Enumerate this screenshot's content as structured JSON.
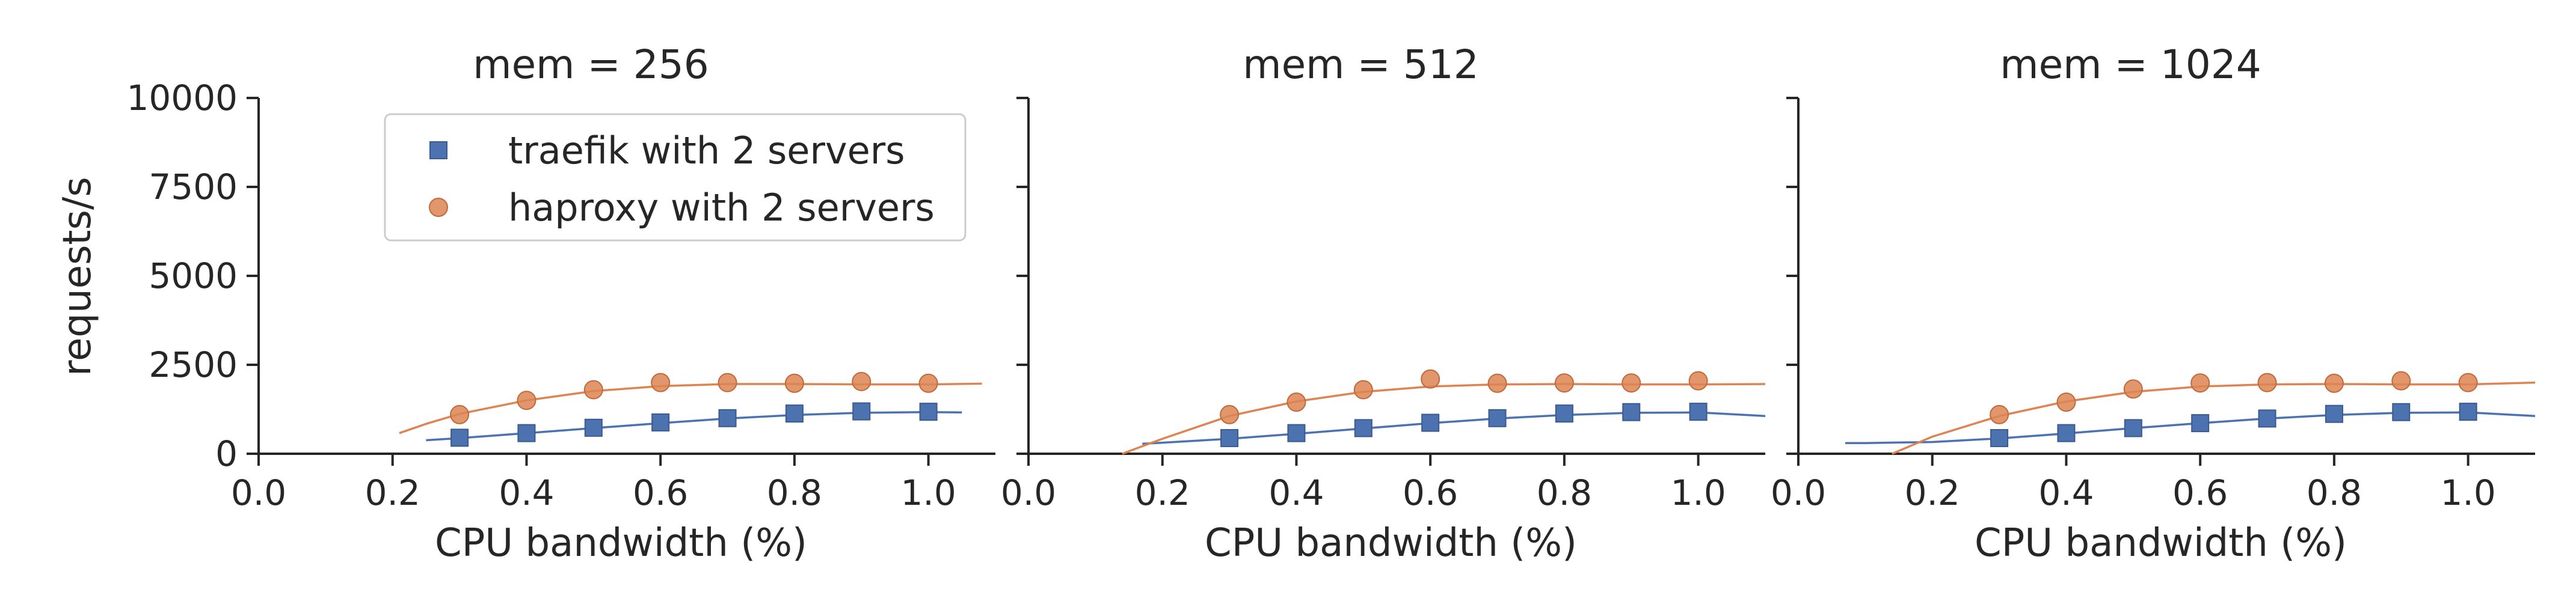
{
  "chart_data": {
    "type": "scatter",
    "ylabel": "requests/s",
    "ylim": [
      0,
      10000
    ],
    "yticks": [
      0,
      2500,
      5000,
      7500,
      10000
    ],
    "xlim": [
      0.0,
      1.1
    ],
    "xticks": [
      0.0,
      0.2,
      0.4,
      0.6,
      0.8,
      1.0
    ],
    "grid": false,
    "legend_position": "top-center (first panel)",
    "legend": [
      {
        "name": "traefik with 2 servers",
        "marker": "square",
        "color": "#4c72b0"
      },
      {
        "name": "haproxy with 2 servers",
        "marker": "circle",
        "color": "#dd8452"
      }
    ],
    "panels": [
      {
        "title": "mem = 256",
        "xlabel": "CPU bandwidth (%)",
        "x": [
          0.3,
          0.4,
          0.5,
          0.6,
          0.7,
          0.8,
          0.9,
          1.0
        ],
        "series": [
          {
            "name": "traefik with 2 servers",
            "values": [
              450,
              580,
              730,
              880,
              1000,
              1130,
              1190,
              1180
            ],
            "fit_range": [
              0.25,
              1.05
            ],
            "fit": [
              [
                0.25,
                380
              ],
              [
                0.3,
                440
              ],
              [
                0.4,
                580
              ],
              [
                0.5,
                720
              ],
              [
                0.6,
                860
              ],
              [
                0.7,
                990
              ],
              [
                0.8,
                1090
              ],
              [
                0.9,
                1150
              ],
              [
                1.0,
                1170
              ],
              [
                1.05,
                1160
              ]
            ]
          },
          {
            "name": "haproxy with 2 servers",
            "values": [
              1100,
              1500,
              1800,
              2000,
              2000,
              1980,
              2030,
              1980
            ],
            "fit_range": [
              0.21,
              1.08
            ],
            "fit": [
              [
                0.21,
                580
              ],
              [
                0.25,
                840
              ],
              [
                0.3,
                1120
              ],
              [
                0.4,
                1500
              ],
              [
                0.5,
                1760
              ],
              [
                0.6,
                1900
              ],
              [
                0.7,
                1960
              ],
              [
                0.8,
                1960
              ],
              [
                0.9,
                1950
              ],
              [
                1.0,
                1950
              ],
              [
                1.08,
                1970
              ]
            ]
          }
        ]
      },
      {
        "title": "mem = 512",
        "xlabel": "CPU bandwidth (%)",
        "x": [
          0.3,
          0.4,
          0.5,
          0.6,
          0.7,
          0.8,
          0.9,
          1.0
        ],
        "series": [
          {
            "name": "traefik with 2 servers",
            "values": [
              440,
              580,
              720,
              870,
              1000,
              1130,
              1170,
              1180
            ],
            "fit_range": [
              0.17,
              1.1
            ],
            "fit": [
              [
                0.17,
                280
              ],
              [
                0.2,
                310
              ],
              [
                0.3,
                420
              ],
              [
                0.4,
                560
              ],
              [
                0.5,
                710
              ],
              [
                0.6,
                860
              ],
              [
                0.7,
                990
              ],
              [
                0.8,
                1090
              ],
              [
                0.9,
                1150
              ],
              [
                1.0,
                1160
              ],
              [
                1.1,
                1060
              ]
            ]
          },
          {
            "name": "haproxy with 2 servers",
            "values": [
              1100,
              1450,
              1800,
              2100,
              1980,
              1990,
              1990,
              2050
            ],
            "fit_range": [
              0.14,
              1.1
            ],
            "fit": [
              [
                0.14,
                0
              ],
              [
                0.2,
                420
              ],
              [
                0.3,
                1060
              ],
              [
                0.4,
                1470
              ],
              [
                0.5,
                1740
              ],
              [
                0.6,
                1890
              ],
              [
                0.7,
                1950
              ],
              [
                0.8,
                1960
              ],
              [
                0.9,
                1950
              ],
              [
                1.0,
                1950
              ],
              [
                1.1,
                1960
              ]
            ]
          }
        ]
      },
      {
        "title": "mem = 1024",
        "xlabel": "CPU bandwidth (%)",
        "x": [
          0.3,
          0.4,
          0.5,
          0.6,
          0.7,
          0.8,
          0.9,
          1.0
        ],
        "series": [
          {
            "name": "traefik with 2 servers",
            "values": [
              440,
              580,
              720,
              860,
              990,
              1120,
              1170,
              1180
            ],
            "fit_range": [
              0.07,
              1.1
            ],
            "fit": [
              [
                0.07,
                300
              ],
              [
                0.1,
                300
              ],
              [
                0.2,
                330
              ],
              [
                0.3,
                430
              ],
              [
                0.4,
                570
              ],
              [
                0.5,
                720
              ],
              [
                0.6,
                860
              ],
              [
                0.7,
                990
              ],
              [
                0.8,
                1090
              ],
              [
                0.9,
                1150
              ],
              [
                1.0,
                1160
              ],
              [
                1.1,
                1060
              ]
            ]
          },
          {
            "name": "haproxy with 2 servers",
            "values": [
              1100,
              1450,
              1820,
              1990,
              2000,
              1980,
              2050,
              2000
            ],
            "fit_range": [
              0.14,
              1.1
            ],
            "fit": [
              [
                0.14,
                0
              ],
              [
                0.2,
                480
              ],
              [
                0.3,
                1060
              ],
              [
                0.4,
                1470
              ],
              [
                0.5,
                1740
              ],
              [
                0.6,
                1890
              ],
              [
                0.7,
                1950
              ],
              [
                0.8,
                1960
              ],
              [
                0.9,
                1950
              ],
              [
                1.0,
                1950
              ],
              [
                1.1,
                2000
              ]
            ]
          }
        ]
      }
    ]
  }
}
